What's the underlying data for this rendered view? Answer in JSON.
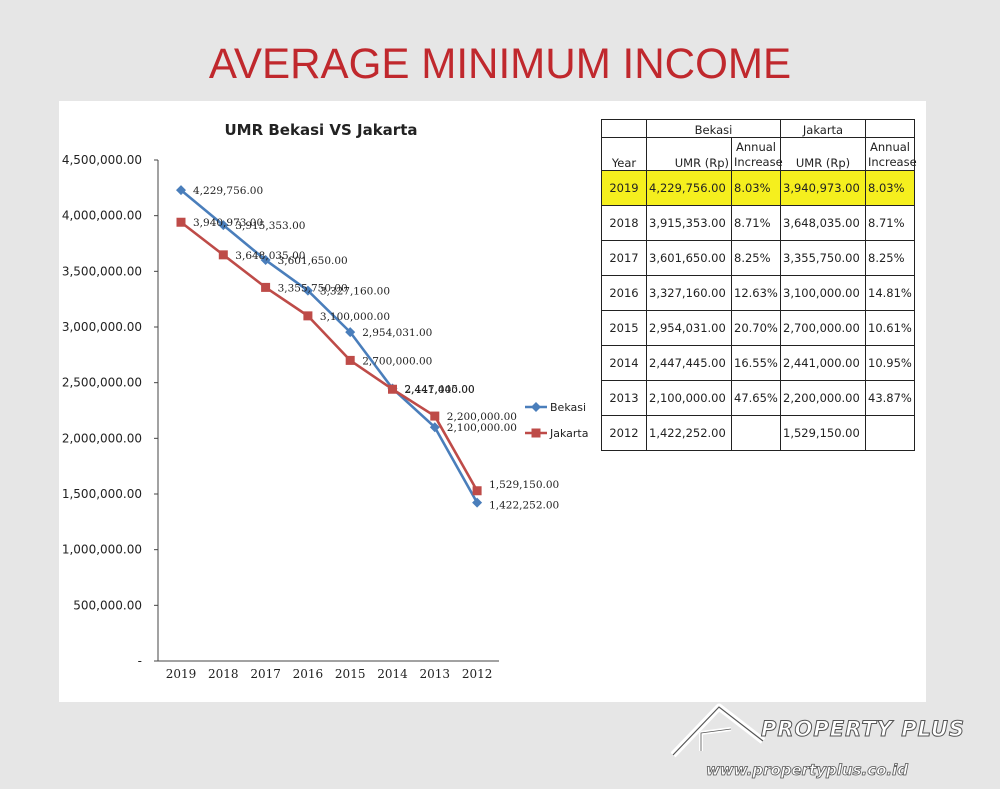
{
  "slide_title": "AVERAGE MINIMUM INCOME",
  "chart_data": {
    "type": "line",
    "title": "UMR Bekasi VS Jakarta",
    "categories": [
      "2019",
      "2018",
      "2017",
      "2016",
      "2015",
      "2014",
      "2013",
      "2012"
    ],
    "ylim": [
      0,
      4500000
    ],
    "y_ticks": [
      "4,500,000.00",
      "4,000,000.00",
      "3,500,000.00",
      "3,000,000.00",
      "2,500,000.00",
      "2,000,000.00",
      "1,500,000.00",
      "1,000,000.00",
      "500,000.00",
      "-"
    ],
    "y_tick_values": [
      4500000,
      4000000,
      3500000,
      3000000,
      2500000,
      2000000,
      1500000,
      1000000,
      500000,
      0
    ],
    "legend_position": "right",
    "series": [
      {
        "name": "Bekasi",
        "color": "#4a7ebb",
        "marker": "diamond",
        "values": [
          4229756,
          3915353,
          3601650,
          3327160,
          2954031,
          2447445,
          2100000,
          1422252
        ],
        "labels": [
          "4,229,756.00",
          "3,915,353.00",
          "3,601,650.00",
          "3,327,160.00",
          "2,954,031.00",
          "2,447,445.00",
          "2,100,000.00",
          "1,422,252.00"
        ]
      },
      {
        "name": "Jakarta",
        "color": "#be4b48",
        "marker": "square",
        "values": [
          3940973,
          3648035,
          3355750,
          3100000,
          2700000,
          2441000,
          2200000,
          1529150
        ],
        "labels": [
          "3,940,973.00",
          "3,648,035.00",
          "3,355,750.00",
          "3,100,000.00",
          "2,700,000.00",
          "2,441,000.00",
          "2,200,000.00",
          "1,529,150.00"
        ]
      }
    ]
  },
  "table": {
    "group_bekasi": "Bekasi",
    "group_jakarta": "Jakarta",
    "col_year": "Year",
    "col_umr_bekasi": "UMR (Rp)",
    "col_inc_bekasi": "Annual Increase",
    "col_umr_jakarta": "UMR (Rp)",
    "col_inc_jakarta": "Annual Increase",
    "highlight_color": "#f5ef1e",
    "rows": [
      {
        "year": "2019",
        "b_umr": "4,229,756.00",
        "b_inc": "8.03%",
        "j_umr": "3,940,973.00",
        "j_inc": "8.03%"
      },
      {
        "year": "2018",
        "b_umr": "3,915,353.00",
        "b_inc": "8.71%",
        "j_umr": "3,648,035.00",
        "j_inc": "8.71%"
      },
      {
        "year": "2017",
        "b_umr": "3,601,650.00",
        "b_inc": "8.25%",
        "j_umr": "3,355,750.00",
        "j_inc": "8.25%"
      },
      {
        "year": "2016",
        "b_umr": "3,327,160.00",
        "b_inc": "12.63%",
        "j_umr": "3,100,000.00",
        "j_inc": "14.81%"
      },
      {
        "year": "2015",
        "b_umr": "2,954,031.00",
        "b_inc": "20.70%",
        "j_umr": "2,700,000.00",
        "j_inc": "10.61%"
      },
      {
        "year": "2014",
        "b_umr": "2,447,445.00",
        "b_inc": "16.55%",
        "j_umr": "2,441,000.00",
        "j_inc": "10.95%"
      },
      {
        "year": "2013",
        "b_umr": "2,100,000.00",
        "b_inc": "47.65%",
        "j_umr": "2,200,000.00",
        "j_inc": "43.87%"
      },
      {
        "year": "2012",
        "b_umr": "1,422,252.00",
        "b_inc": "",
        "j_umr": "1,529,150.00",
        "j_inc": ""
      }
    ]
  },
  "brand": {
    "name": "PROPERTY PLUS",
    "url": "www.propertyplus.co.id",
    "logo_icon": "house-roof-icon"
  }
}
